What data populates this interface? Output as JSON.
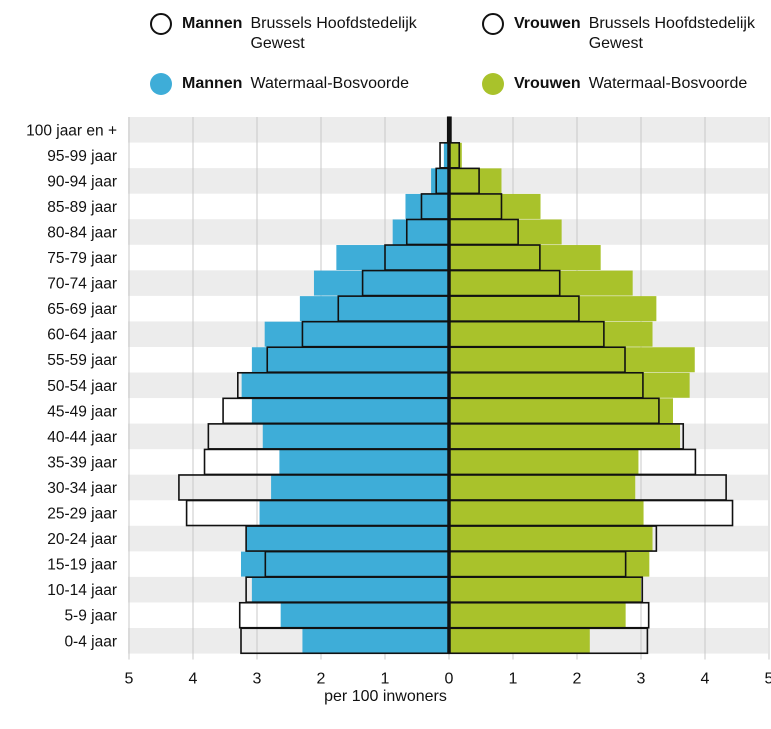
{
  "colors": {
    "mannen_fill": "#3eadd8",
    "vrouwen_fill": "#a9c22b",
    "outline": "#111111",
    "band": "#ececec",
    "grid": "#c8c8c8"
  },
  "legend": [
    {
      "sex": "Mannen",
      "region": "Brussels Hoofdstedelijk Gewest",
      "style": "outline"
    },
    {
      "sex": "Vrouwen",
      "region": "Brussels Hoofdstedelijk Gewest",
      "style": "outline"
    },
    {
      "sex": "Mannen",
      "region": "Watermaal-Bosvoorde",
      "style": "filled-mannen"
    },
    {
      "sex": "Vrouwen",
      "region": "Watermaal-Bosvoorde",
      "style": "filled-vrouwen"
    }
  ],
  "chart_data": {
    "type": "bar",
    "orientation": "horizontal-population-pyramid",
    "xlabel": "per 100 inwoners",
    "xlim": [
      -5,
      5
    ],
    "xticks": [
      5,
      4,
      3,
      2,
      1,
      0,
      1,
      2,
      3,
      4,
      5
    ],
    "categories": [
      "100 jaar en +",
      "95-99 jaar",
      "90-94 jaar",
      "85-89 jaar",
      "80-84 jaar",
      "75-79 jaar",
      "70-74 jaar",
      "65-69 jaar",
      "60-64 jaar",
      "55-59 jaar",
      "50-54 jaar",
      "45-49 jaar",
      "40-44 jaar",
      "35-39 jaar",
      "30-34 jaar",
      "25-29 jaar",
      "20-24 jaar",
      "15-19 jaar",
      "10-14 jaar",
      "5-9 jaar",
      "0-4 jaar"
    ],
    "series": [
      {
        "name": "Mannen Watermaal-Bosvoorde",
        "side": "left",
        "style": "filled",
        "values": [
          0.0,
          0.08,
          0.28,
          0.68,
          0.88,
          1.76,
          2.11,
          2.33,
          2.88,
          3.08,
          3.24,
          3.08,
          2.91,
          2.65,
          2.78,
          2.96,
          3.18,
          3.25,
          3.08,
          2.63,
          2.29
        ]
      },
      {
        "name": "Vrouwen Watermaal-Bosvoorde",
        "side": "right",
        "style": "filled",
        "values": [
          0.01,
          0.2,
          0.82,
          1.43,
          1.76,
          2.37,
          2.87,
          3.24,
          3.18,
          3.84,
          3.76,
          3.5,
          3.61,
          2.96,
          2.91,
          3.04,
          3.18,
          3.13,
          3.0,
          2.76,
          2.2
        ]
      },
      {
        "name": "Mannen Brussels Hoofdstedelijk Gewest",
        "side": "left",
        "style": "outline",
        "values": [
          0.02,
          0.14,
          0.2,
          0.43,
          0.66,
          1.0,
          1.35,
          1.73,
          2.29,
          2.84,
          3.3,
          3.53,
          3.76,
          3.82,
          4.22,
          4.1,
          3.17,
          2.87,
          3.17,
          3.27,
          3.25
        ]
      },
      {
        "name": "Vrouwen Brussels Hoofdstedelijk Gewest",
        "side": "right",
        "style": "outline",
        "values": [
          0.03,
          0.16,
          0.47,
          0.82,
          1.08,
          1.42,
          1.73,
          2.03,
          2.42,
          2.75,
          3.03,
          3.28,
          3.66,
          3.85,
          4.33,
          4.43,
          3.24,
          2.76,
          3.02,
          3.12,
          3.1
        ]
      }
    ],
    "grid": true,
    "legend_position": "top"
  }
}
